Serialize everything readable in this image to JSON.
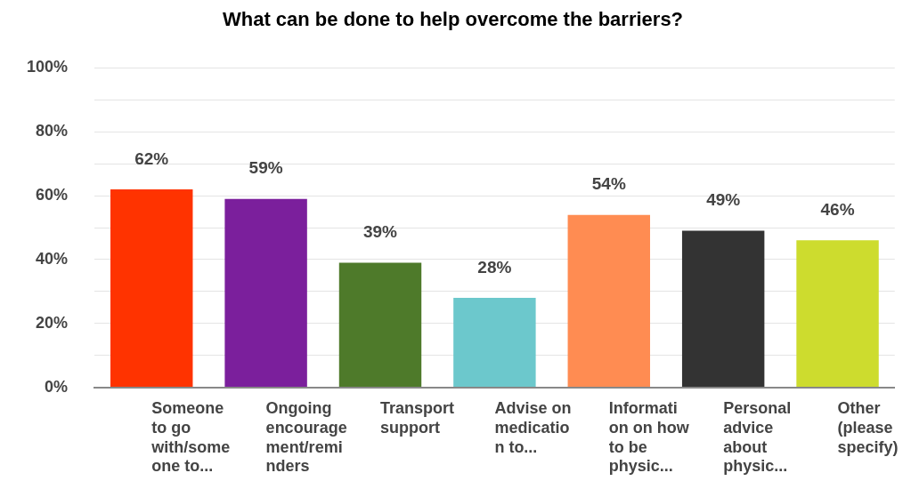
{
  "chart_data": {
    "type": "bar",
    "title": "What can be done to help overcome the barriers?",
    "categories": [
      "Someone to go with/someone to...",
      "Ongoing encouragement/reminders",
      "Transport support",
      "Advise on medication to...",
      "Information on how to be physic...",
      "Personal advice about physic...",
      "Other (please specify)"
    ],
    "values": [
      62,
      59,
      39,
      28,
      54,
      49,
      46
    ],
    "colors": [
      "#ff3300",
      "#7b1f9c",
      "#4e7a2a",
      "#6cc8cc",
      "#ff8c52",
      "#333333",
      "#cddc2e"
    ],
    "value_labels": [
      "62%",
      "59%",
      "39%",
      "28%",
      "54%",
      "49%",
      "46%"
    ],
    "ylim": [
      0,
      100
    ],
    "yticks": [
      {
        "value": 0,
        "label": "0%"
      },
      {
        "value": 10,
        "label": null
      },
      {
        "value": 20,
        "label": "20%"
      },
      {
        "value": 30,
        "label": null
      },
      {
        "value": 40,
        "label": "40%"
      },
      {
        "value": 50,
        "label": null
      },
      {
        "value": 60,
        "label": "60%"
      },
      {
        "value": 70,
        "label": null
      },
      {
        "value": 80,
        "label": "80%"
      },
      {
        "value": 90,
        "label": null
      },
      {
        "value": 100,
        "label": "100%"
      }
    ],
    "grid": "y",
    "legend": false
  }
}
